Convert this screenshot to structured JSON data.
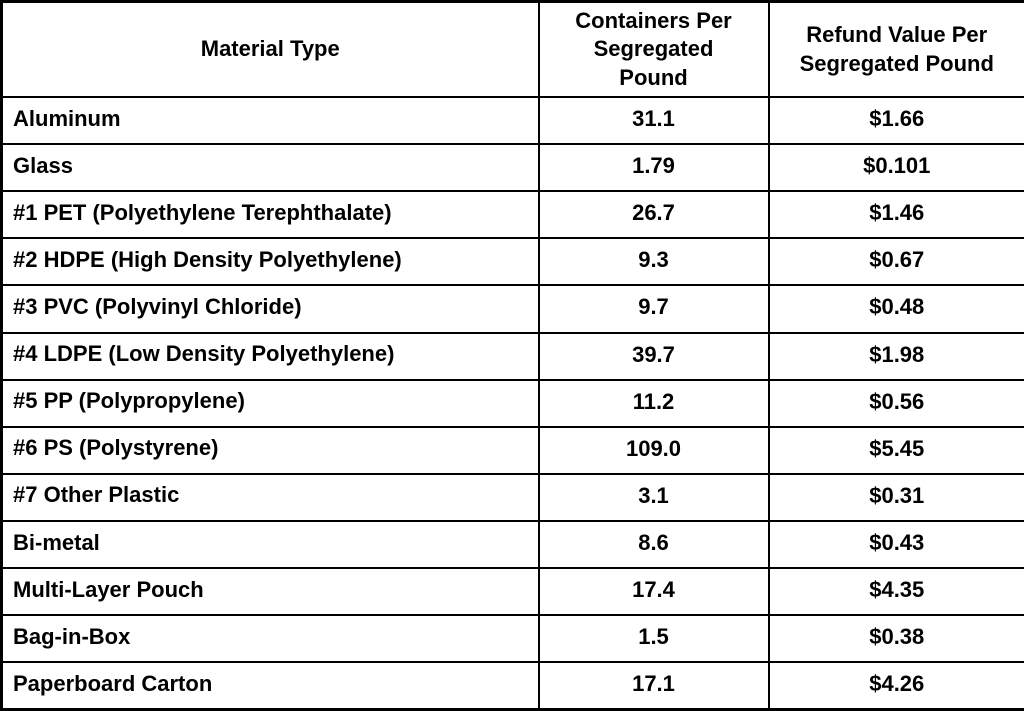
{
  "colors": {
    "background": "#ffffff",
    "border": "#000000",
    "text": "#000000"
  },
  "table": {
    "columns": [
      "Material Type",
      "Containers Per Segregated Pound",
      "Refund Value Per Segregated Pound"
    ],
    "rows": [
      {
        "material": "Aluminum",
        "containers": "31.1",
        "refund": "$1.66"
      },
      {
        "material": "Glass",
        "containers": "1.79",
        "refund": "$0.101"
      },
      {
        "material": "#1 PET (Polyethylene Terephthalate)",
        "containers": "26.7",
        "refund": "$1.46"
      },
      {
        "material": "#2 HDPE (High Density Polyethylene)",
        "containers": "9.3",
        "refund": "$0.67"
      },
      {
        "material": "#3 PVC (Polyvinyl Chloride)",
        "containers": "9.7",
        "refund": "$0.48"
      },
      {
        "material": "#4 LDPE (Low Density Polyethylene)",
        "containers": "39.7",
        "refund": "$1.98"
      },
      {
        "material": "#5 PP (Polypropylene)",
        "containers": "11.2",
        "refund": "$0.56"
      },
      {
        "material": "#6 PS (Polystyrene)",
        "containers": "109.0",
        "refund": "$5.45"
      },
      {
        "material": "#7 Other Plastic",
        "containers": "3.1",
        "refund": "$0.31"
      },
      {
        "material": "Bi-metal",
        "containers": "8.6",
        "refund": "$0.43"
      },
      {
        "material": "Multi-Layer Pouch",
        "containers": "17.4",
        "refund": "$4.35"
      },
      {
        "material": "Bag-in-Box",
        "containers": "1.5",
        "refund": "$0.38"
      },
      {
        "material": "Paperboard Carton",
        "containers": "17.1",
        "refund": "$4.26"
      }
    ]
  },
  "chart_data": {
    "type": "table",
    "title": "",
    "columns": [
      "Material Type",
      "Containers Per Segregated Pound",
      "Refund Value Per Segregated Pound"
    ],
    "rows": [
      [
        "Aluminum",
        31.1,
        "$1.66"
      ],
      [
        "Glass",
        1.79,
        "$0.101"
      ],
      [
        "#1 PET (Polyethylene Terephthalate)",
        26.7,
        "$1.46"
      ],
      [
        "#2 HDPE (High Density Polyethylene)",
        9.3,
        "$0.67"
      ],
      [
        "#3 PVC (Polyvinyl Chloride)",
        9.7,
        "$0.48"
      ],
      [
        "#4 LDPE (Low Density Polyethylene)",
        39.7,
        "$1.98"
      ],
      [
        "#5 PP (Polypropylene)",
        11.2,
        "$0.56"
      ],
      [
        "#6 PS (Polystyrene)",
        109.0,
        "$5.45"
      ],
      [
        "#7 Other Plastic",
        3.1,
        "$0.31"
      ],
      [
        "Bi-metal",
        8.6,
        "$0.43"
      ],
      [
        "Multi-Layer Pouch",
        17.4,
        "$4.35"
      ],
      [
        "Bag-in-Box",
        1.5,
        "$0.38"
      ],
      [
        "Paperboard Carton",
        17.1,
        "$4.26"
      ]
    ]
  }
}
